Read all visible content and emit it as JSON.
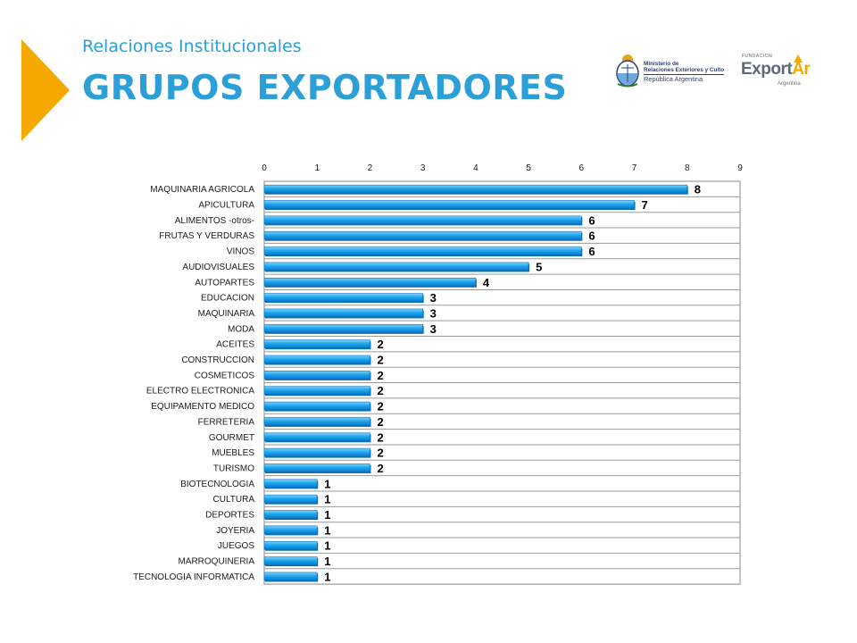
{
  "header": {
    "subtitle": "Relaciones Institucionales",
    "title": "GRUPOS EXPORTADORES",
    "accent_color": "#f5a800",
    "title_color": "#2a9fd8"
  },
  "logos": {
    "ministry": {
      "line1": "Ministerio de",
      "line2": "Relaciones Exteriores y Culto",
      "line3": "República Argentina"
    },
    "exportar": {
      "fundacion": "FUNDACION",
      "name_main": "Export",
      "name_accent": "Ar",
      "country": "Argentina"
    }
  },
  "chart_data": {
    "type": "bar",
    "orientation": "horizontal",
    "categories": [
      "MAQUINARIA AGRICOLA",
      "APICULTURA",
      "ALIMENTOS -otros-",
      "FRUTAS Y VERDURAS",
      "VINOS",
      "AUDIOVISUALES",
      "AUTOPARTES",
      "EDUCACION",
      "MAQUINARIA",
      "MODA",
      "ACEITES",
      "CONSTRUCCION",
      "COSMETICOS",
      "ELECTRO ELECTRONICA",
      "EQUIPAMENTO MEDICO",
      "FERRETERIA",
      "GOURMET",
      "MUEBLES",
      "TURISMO",
      "BIOTECNOLOGIA",
      "CULTURA",
      "DEPORTES",
      "JOYERIA",
      "JUEGOS",
      "MARROQUINERIA",
      "TECNOLOGIA INFORMATICA"
    ],
    "values": [
      8,
      7,
      6,
      6,
      6,
      5,
      4,
      3,
      3,
      3,
      2,
      2,
      2,
      2,
      2,
      2,
      2,
      2,
      2,
      1,
      1,
      1,
      1,
      1,
      1,
      1
    ],
    "xlim": [
      0,
      9
    ],
    "xticks": [
      "0",
      "1",
      "2",
      "3",
      "4",
      "5",
      "6",
      "7",
      "8",
      "9"
    ],
    "axis_position": "top",
    "grid": "horizontal",
    "bar_color": "#1ea7ef",
    "bar_dark": "#0b6fb8"
  }
}
